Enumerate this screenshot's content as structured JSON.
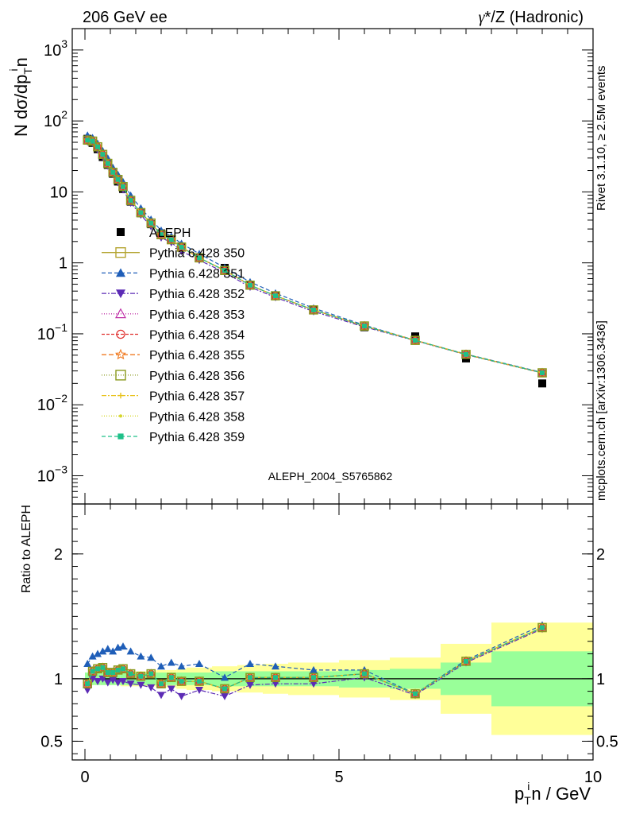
{
  "header": {
    "left": "206 GeV ee",
    "right_prefix": "γ",
    "right_suffix": "*/Z (Hadronic)"
  },
  "side_text": {
    "rivet": "Rivet 3.1.10, ≥ 2.5M events",
    "mcplots": "mcplots.cern.ch [arXiv:1306.3436]"
  },
  "watermark": "ALEPH_2004_S5765862",
  "ylabel_top": {
    "base": "N dσ/dp",
    "sub": "T",
    "sup": "i",
    "tail": "n"
  },
  "ylabel_bottom": "Ratio to ALEPH",
  "xlabel": {
    "base": "p",
    "sub": "T",
    "sup": "i",
    "tail": "n / GeV"
  },
  "colors": {
    "data": "#000000",
    "band_inner": "#99ff99",
    "band_outer": "#ffff99",
    "s350": "#b5a532",
    "s351": "#1f5eb8",
    "s352": "#5c2bb5",
    "s353": "#c033a8",
    "s354": "#e0302e",
    "s355": "#f07a20",
    "s356": "#8a9a1e",
    "s357": "#e8c21a",
    "s358": "#d6d62a",
    "s359": "#1fc089"
  },
  "chart_data": {
    "type": "line",
    "x_range": [
      -0.25,
      10.0
    ],
    "y_range_top": [
      0.0004,
      2000
    ],
    "y_scale_top": "log",
    "y_range_bottom": [
      0.35,
      2.4
    ],
    "top_y_ticks": [
      {
        "v": 0.001,
        "base": "10",
        "exp": "−3"
      },
      {
        "v": 0.01,
        "base": "10",
        "exp": "−2"
      },
      {
        "v": 0.1,
        "base": "10",
        "exp": "−1"
      },
      {
        "v": 1,
        "base": "1",
        "exp": ""
      },
      {
        "v": 10,
        "base": "10",
        "exp": ""
      },
      {
        "v": 100,
        "base": "10",
        "exp": "2"
      },
      {
        "v": 1000,
        "base": "10",
        "exp": "3"
      }
    ],
    "bottom_y_ticks": [
      {
        "v": 0.5,
        "label": "0.5"
      },
      {
        "v": 1,
        "label": "1"
      },
      {
        "v": 2,
        "label": "2"
      }
    ],
    "x_ticks": [
      {
        "v": 0,
        "label": "0"
      },
      {
        "v": 5,
        "label": "5"
      },
      {
        "v": 10,
        "label": "10"
      }
    ],
    "legend": [
      "ALEPH",
      "Pythia 6.428 350",
      "Pythia 6.428 351",
      "Pythia 6.428 352",
      "Pythia 6.428 353",
      "Pythia 6.428 354",
      "Pythia 6.428 355",
      "Pythia 6.428 356",
      "Pythia 6.428 357",
      "Pythia 6.428 358",
      "Pythia 6.428 359"
    ],
    "legend_placement": "lower-left",
    "data": {
      "name": "ALEPH",
      "x": [
        0.05,
        0.15,
        0.25,
        0.35,
        0.45,
        0.55,
        0.65,
        0.75,
        0.9,
        1.1,
        1.3,
        1.5,
        1.7,
        1.9,
        2.25,
        2.75,
        3.25,
        3.75,
        4.5,
        5.5,
        6.5,
        7.5,
        9.0
      ],
      "y": [
        56,
        49,
        40,
        31,
        24,
        18,
        14,
        11,
        7.3,
        5.0,
        3.5,
        2.6,
        2.1,
        1.7,
        1.2,
        0.85,
        0.48,
        0.34,
        0.215,
        0.124,
        0.092,
        0.045,
        0.02
      ],
      "stat_band": [
        0.05,
        0.05,
        0.05,
        0.05,
        0.05,
        0.05,
        0.05,
        0.05,
        0.05,
        0.05,
        0.05,
        0.05,
        0.05,
        0.05,
        0.05,
        0.06,
        0.06,
        0.06,
        0.06,
        0.07,
        0.08,
        0.13,
        0.22
      ],
      "total_band": [
        0.05,
        0.05,
        0.05,
        0.05,
        0.05,
        0.05,
        0.05,
        0.06,
        0.06,
        0.06,
        0.06,
        0.07,
        0.07,
        0.08,
        0.09,
        0.1,
        0.11,
        0.12,
        0.13,
        0.15,
        0.17,
        0.28,
        0.45
      ],
      "bin_edges": [
        0,
        0.1,
        0.2,
        0.3,
        0.4,
        0.5,
        0.6,
        0.7,
        0.8,
        1.0,
        1.2,
        1.4,
        1.6,
        1.8,
        2.0,
        2.5,
        3.0,
        3.5,
        4.0,
        5.0,
        6.0,
        7.0,
        8.0,
        10.0
      ]
    },
    "series": [
      {
        "name": "Pythia 6.428 350",
        "marker": "open-square",
        "dash": "",
        "color_key": "s350",
        "ratio": [
          0.96,
          1.06,
          1.08,
          1.09,
          1.05,
          1.05,
          1.07,
          1.08,
          1.04,
          1.02,
          1.04,
          0.96,
          1.01,
          0.98,
          0.98,
          0.92,
          1.01,
          1.01,
          1.01,
          1.04,
          0.88,
          1.14,
          1.41
        ]
      },
      {
        "name": "Pythia 6.428 351",
        "marker": "filled-triangle-up",
        "dash": "5,3",
        "color_key": "s351",
        "ratio": [
          1.12,
          1.18,
          1.2,
          1.22,
          1.24,
          1.22,
          1.25,
          1.26,
          1.22,
          1.18,
          1.17,
          1.1,
          1.13,
          1.1,
          1.12,
          1.01,
          1.12,
          1.1,
          1.07,
          1.07,
          0.88,
          1.15,
          1.43
        ]
      },
      {
        "name": "Pythia 6.428 352",
        "marker": "filled-triangle-down",
        "dash": "6,2,2,2",
        "color_key": "s352",
        "ratio": [
          0.91,
          1.0,
          0.98,
          1.0,
          0.97,
          0.99,
          0.97,
          0.98,
          0.96,
          0.95,
          0.93,
          0.87,
          0.92,
          0.86,
          0.91,
          0.86,
          0.95,
          0.96,
          0.96,
          1.01,
          0.87,
          1.13,
          1.4
        ]
      },
      {
        "name": "Pythia 6.428 353",
        "marker": "open-triangle-up",
        "dash": "1,2",
        "color_key": "s353",
        "ratio": [
          0.96,
          1.06,
          1.08,
          1.09,
          1.05,
          1.05,
          1.07,
          1.08,
          1.04,
          1.02,
          1.04,
          0.96,
          1.01,
          0.98,
          0.98,
          0.92,
          1.01,
          1.01,
          1.01,
          1.04,
          0.88,
          1.14,
          1.41
        ]
      },
      {
        "name": "Pythia 6.428 354",
        "marker": "open-circle",
        "dash": "4,2",
        "color_key": "s354",
        "ratio": [
          0.96,
          1.06,
          1.08,
          1.09,
          1.05,
          1.05,
          1.07,
          1.08,
          1.04,
          1.02,
          1.04,
          0.96,
          1.01,
          0.98,
          0.98,
          0.92,
          1.01,
          1.01,
          1.01,
          1.04,
          0.88,
          1.14,
          1.41
        ]
      },
      {
        "name": "Pythia 6.428 355",
        "marker": "open-star",
        "dash": "6,3",
        "color_key": "s355",
        "ratio": [
          0.96,
          1.06,
          1.08,
          1.09,
          1.05,
          1.05,
          1.07,
          1.08,
          1.04,
          1.02,
          1.04,
          0.96,
          1.01,
          0.98,
          0.98,
          0.92,
          1.01,
          1.01,
          1.01,
          1.04,
          0.88,
          1.14,
          1.41
        ]
      },
      {
        "name": "Pythia 6.428 356",
        "marker": "open-square",
        "dash": "1,2",
        "color_key": "s356",
        "ratio": [
          0.96,
          1.06,
          1.08,
          1.09,
          1.05,
          1.05,
          1.07,
          1.08,
          1.04,
          1.02,
          1.04,
          0.96,
          1.01,
          0.98,
          0.98,
          0.92,
          1.01,
          1.01,
          1.01,
          1.04,
          0.88,
          1.14,
          1.41
        ]
      },
      {
        "name": "Pythia 6.428 357",
        "marker": "small-cross",
        "dash": "6,2,2,2",
        "color_key": "s357",
        "ratio": [
          0.96,
          1.06,
          1.08,
          1.09,
          1.05,
          1.05,
          1.07,
          1.08,
          1.04,
          1.02,
          1.04,
          0.96,
          1.01,
          0.98,
          0.98,
          0.92,
          1.01,
          1.01,
          1.01,
          1.04,
          0.88,
          1.14,
          1.41
        ]
      },
      {
        "name": "Pythia 6.428 358",
        "marker": "dot",
        "dash": "1,2",
        "color_key": "s358",
        "ratio": [
          0.96,
          1.06,
          1.08,
          1.09,
          1.05,
          1.05,
          1.07,
          1.08,
          1.04,
          1.02,
          1.04,
          0.96,
          1.01,
          0.98,
          0.98,
          0.92,
          1.01,
          1.01,
          1.01,
          1.04,
          0.88,
          1.14,
          1.41
        ]
      },
      {
        "name": "Pythia 6.428 359",
        "marker": "filled-square-small",
        "dash": "5,3",
        "color_key": "s359",
        "ratio": [
          0.96,
          1.06,
          1.08,
          1.09,
          1.05,
          1.05,
          1.07,
          1.08,
          1.04,
          1.02,
          1.04,
          0.96,
          1.01,
          0.98,
          0.98,
          0.92,
          1.01,
          1.01,
          1.01,
          1.04,
          0.88,
          1.14,
          1.41
        ]
      }
    ]
  }
}
